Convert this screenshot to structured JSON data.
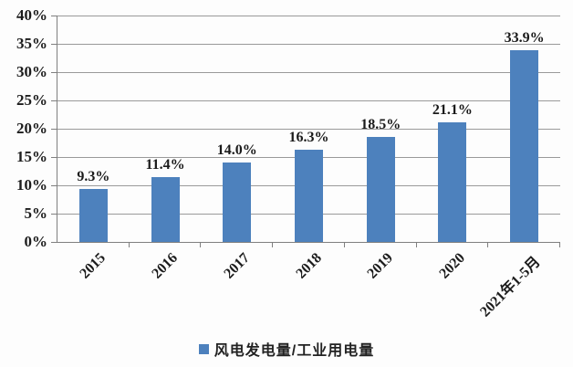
{
  "chart_data": {
    "type": "bar",
    "title": "",
    "xlabel": "",
    "ylabel": "",
    "categories": [
      "2015",
      "2016",
      "2017",
      "2018",
      "2019",
      "2020",
      "2021年1-5月"
    ],
    "values": [
      9.3,
      11.4,
      14.0,
      16.3,
      18.5,
      21.1,
      33.9
    ],
    "bar_labels": [
      "9.3%",
      "11.4%",
      "14.0%",
      "16.3%",
      "18.5%",
      "21.1%",
      "33.9%"
    ],
    "ylim": [
      0,
      40
    ],
    "ytick_step": 5,
    "ytick_labels": [
      "0%",
      "5%",
      "10%",
      "15%",
      "20%",
      "25%",
      "30%",
      "35%",
      "40%"
    ],
    "grid": true,
    "legend": {
      "position": "bottom",
      "entries": [
        {
          "label": "风电发电量/工业用电量",
          "color": "#4d81bd"
        }
      ]
    }
  },
  "colors": {
    "bar": "#4d81bd",
    "grid": "#9a9a9a",
    "axis": "#7f7f7f",
    "text": "#1a1a1a",
    "background": "#fdfdfd"
  }
}
